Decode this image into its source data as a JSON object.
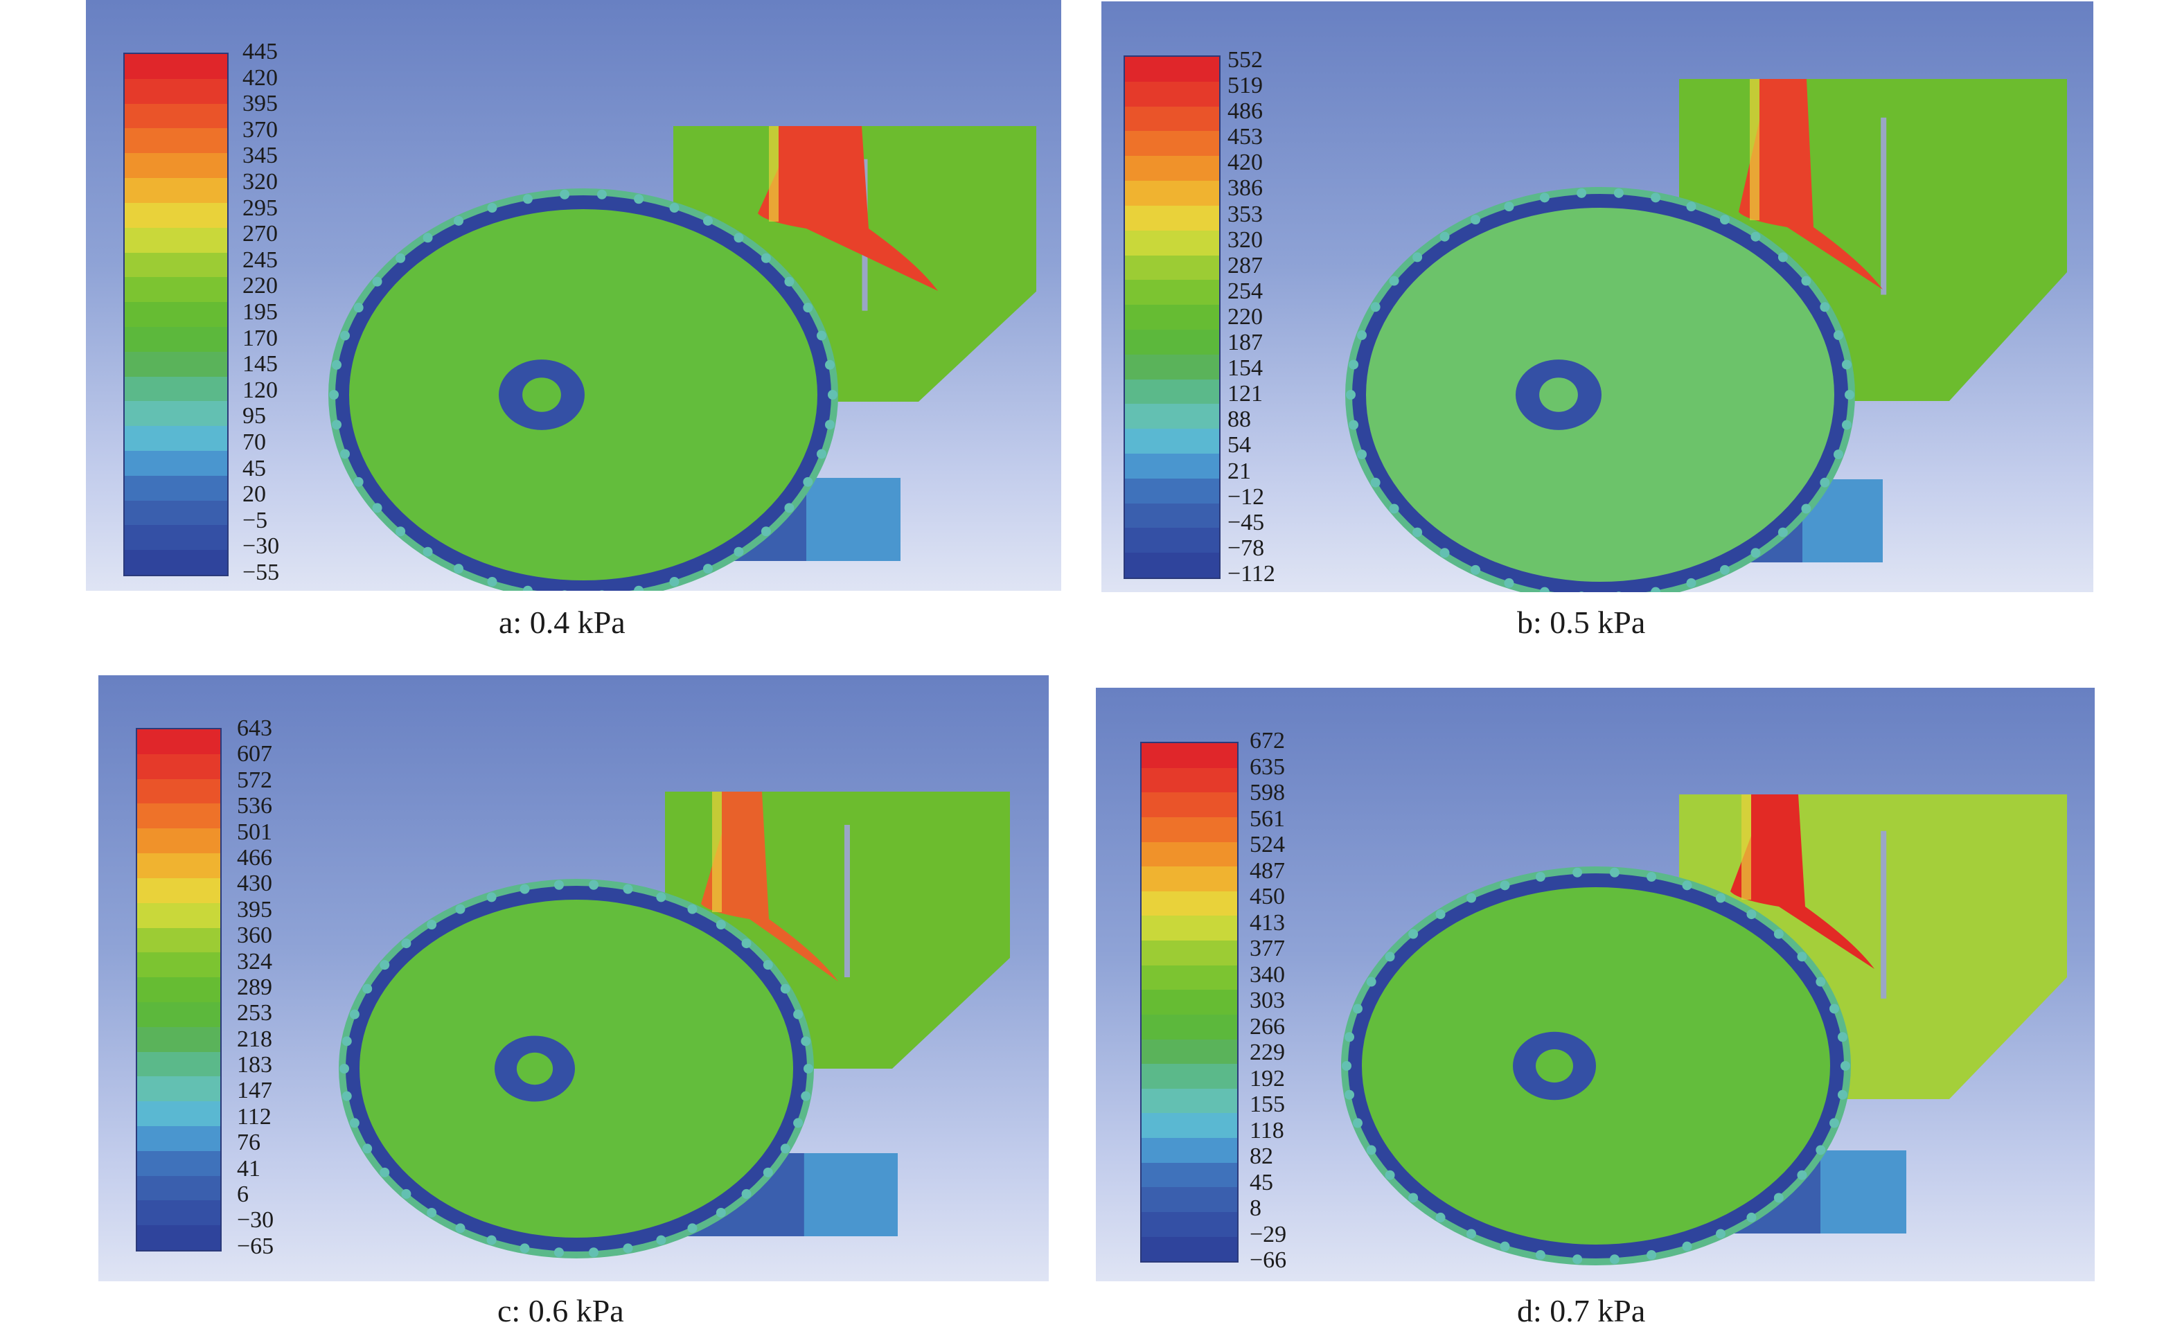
{
  "panels": [
    {
      "caption": "a: 0.4 kPa",
      "legend": [
        "445",
        "420",
        "395",
        "370",
        "345",
        "320",
        "295",
        "270",
        "245",
        "220",
        "195",
        "170",
        "145",
        "120",
        "95",
        "70",
        "45",
        "20",
        "−5",
        "−30",
        "−55"
      ],
      "colors": {
        "flow": "#e8412a",
        "top_region": "#6cbc2e",
        "drum": "#63bd3c"
      }
    },
    {
      "caption": "b: 0.5 kPa",
      "legend": [
        "552",
        "519",
        "486",
        "453",
        "420",
        "386",
        "353",
        "320",
        "287",
        "254",
        "220",
        "187",
        "154",
        "121",
        "88",
        "54",
        "21",
        "−12",
        "−45",
        "−78",
        "−112"
      ],
      "colors": {
        "flow": "#e8412a",
        "top_region": "#6cbc2e",
        "drum": "#6cc36a"
      }
    },
    {
      "caption": "c: 0.6 kPa",
      "legend": [
        "643",
        "607",
        "572",
        "536",
        "501",
        "466",
        "430",
        "395",
        "360",
        "324",
        "289",
        "253",
        "218",
        "183",
        "147",
        "112",
        "76",
        "41",
        "6",
        "−30",
        "−65"
      ],
      "colors": {
        "flow": "#e8612a",
        "top_region": "#6cbc2e",
        "drum": "#63bd3c"
      }
    },
    {
      "caption": "d: 0.7 kPa",
      "legend": [
        "672",
        "635",
        "598",
        "561",
        "524",
        "487",
        "450",
        "413",
        "377",
        "340",
        "303",
        "266",
        "229",
        "192",
        "155",
        "118",
        "82",
        "45",
        "8",
        "−29",
        "−66"
      ],
      "colors": {
        "flow": "#e22a25",
        "top_region": "#a4cf3a",
        "drum": "#63bd3c"
      }
    }
  ],
  "palette": [
    "#e0262a",
    "#e53a2a",
    "#ea5429",
    "#ee7229",
    "#f0922a",
    "#f0b330",
    "#e9d23a",
    "#c9d83a",
    "#9ccc34",
    "#7cc431",
    "#66bc33",
    "#5cb83c",
    "#5ab35a",
    "#5bb98a",
    "#63c0b2",
    "#5ab8d2",
    "#4a96cf",
    "#3f72bb",
    "#3a5fae",
    "#3450a5",
    "#2f449c"
  ]
}
